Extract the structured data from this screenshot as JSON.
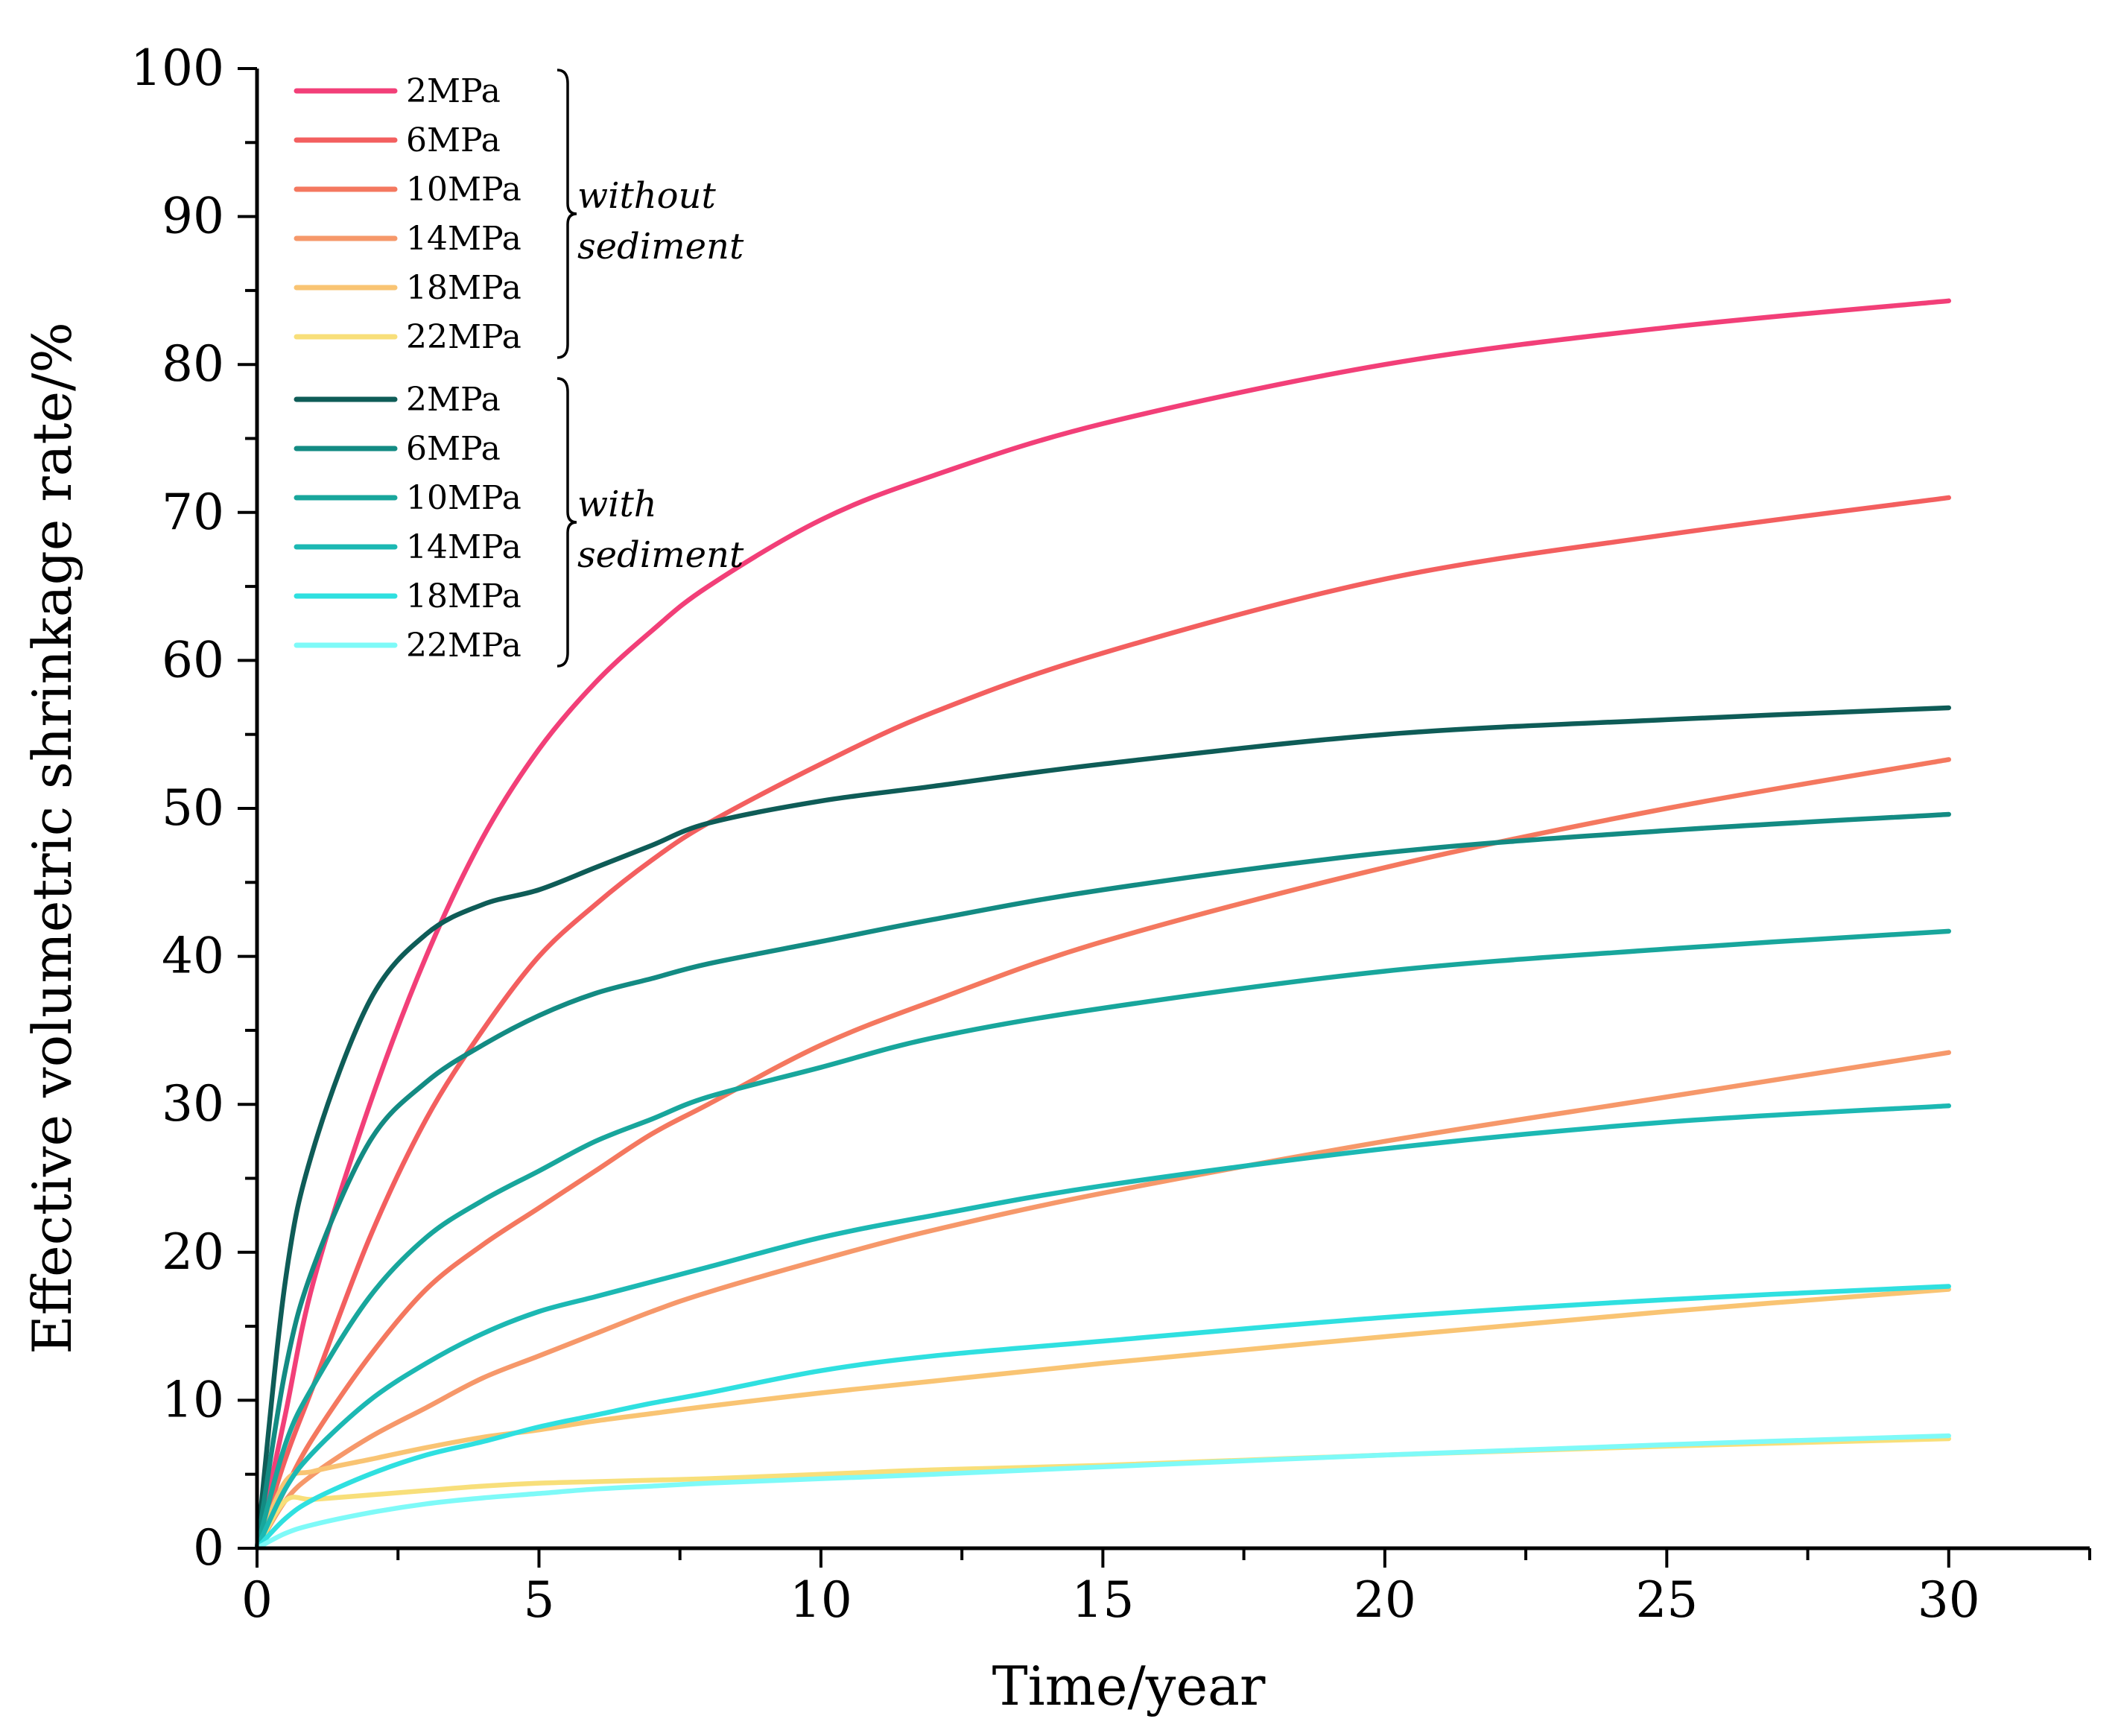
{
  "chart_data": {
    "type": "line",
    "xlabel": "Time/year",
    "ylabel": "Effective volumetric shrinkage rate/%",
    "xlim": [
      0,
      32.5
    ],
    "ylim": [
      0,
      100
    ],
    "x_ticks": [
      "0",
      "5",
      "10",
      "15",
      "20",
      "25",
      "30"
    ],
    "y_ticks": [
      "0",
      "10",
      "20",
      "30",
      "40",
      "50",
      "60",
      "70",
      "80",
      "90",
      "100"
    ],
    "x_tick_values": [
      0,
      5,
      10,
      15,
      20,
      25,
      30
    ],
    "y_tick_values": [
      0,
      10,
      20,
      30,
      40,
      50,
      60,
      70,
      80,
      90,
      100
    ],
    "legend_groups": [
      {
        "label_line1": "without",
        "label_line2": "sediment"
      },
      {
        "label_line1": "with",
        "label_line2": "sediment"
      }
    ],
    "x": [
      0,
      0.5,
      1,
      2,
      3,
      4,
      5,
      6,
      7,
      8,
      10,
      12,
      15,
      20,
      25,
      30
    ],
    "series": [
      {
        "name": "2MPa",
        "group": 0,
        "color": "#f23f78",
        "values": [
          0,
          9,
          18,
          30,
          40,
          48,
          54,
          58.5,
          62,
          65,
          69.5,
          72.5,
          76,
          80,
          82.5,
          84.3
        ]
      },
      {
        "name": "6MPa",
        "group": 0,
        "color": "#f35f5f",
        "values": [
          0,
          6,
          11,
          21,
          29,
          35,
          40,
          43.5,
          46.5,
          49,
          53,
          56.5,
          60.5,
          65.5,
          68.5,
          71
        ]
      },
      {
        "name": "10MPa",
        "group": 0,
        "color": "#f4785f",
        "values": [
          0,
          4,
          7.5,
          13,
          17.5,
          20.5,
          23,
          25.5,
          28,
          30,
          34,
          37,
          41,
          46,
          50,
          53.3
        ]
      },
      {
        "name": "14MPa",
        "group": 0,
        "color": "#f6986a",
        "values": [
          0,
          3.2,
          5,
          7.5,
          9.5,
          11.5,
          13,
          14.5,
          16,
          17.3,
          19.5,
          21.5,
          24,
          27.5,
          30.5,
          33.5
        ]
      },
      {
        "name": "18MPa",
        "group": 0,
        "color": "#f9c473",
        "values": [
          0,
          4.5,
          5.2,
          6,
          6.8,
          7.5,
          8,
          8.6,
          9.1,
          9.6,
          10.5,
          11.3,
          12.5,
          14.3,
          16,
          17.5
        ]
      },
      {
        "name": "22MPa",
        "group": 0,
        "color": "#f8df7a",
        "values": [
          0,
          3.2,
          3.3,
          3.6,
          3.9,
          4.2,
          4.4,
          4.5,
          4.6,
          4.7,
          5,
          5.3,
          5.6,
          6.3,
          6.9,
          7.4
        ]
      },
      {
        "name": "2MPa",
        "group": 1,
        "color": "#0e5c57",
        "values": [
          0,
          18,
          27,
          37,
          41.5,
          43.5,
          44.5,
          46,
          47.5,
          49,
          50.5,
          51.5,
          53,
          55,
          56,
          56.8
        ]
      },
      {
        "name": "6MPa",
        "group": 1,
        "color": "#138b83",
        "values": [
          0,
          12,
          19,
          27.5,
          31.5,
          34,
          36,
          37.5,
          38.5,
          39.5,
          41,
          42.5,
          44.5,
          47,
          48.5,
          49.6
        ]
      },
      {
        "name": "10MPa",
        "group": 1,
        "color": "#18a69c",
        "values": [
          0,
          7,
          11,
          17,
          21,
          23.5,
          25.5,
          27.5,
          29,
          30.5,
          32.5,
          34.5,
          36.5,
          39,
          40.5,
          41.7
        ]
      },
      {
        "name": "14MPa",
        "group": 1,
        "color": "#1cb8b3",
        "values": [
          0,
          4,
          6.5,
          10,
          12.5,
          14.5,
          16,
          17,
          18,
          19,
          21,
          22.5,
          24.5,
          27,
          28.8,
          29.9
        ]
      },
      {
        "name": "18MPa",
        "group": 1,
        "color": "#2fe0e0",
        "values": [
          0,
          2,
          3.3,
          5,
          6.3,
          7.2,
          8.2,
          9,
          9.8,
          10.5,
          12,
          13,
          14,
          15.6,
          16.8,
          17.7
        ]
      },
      {
        "name": "22MPa",
        "group": 1,
        "color": "#7efaf8",
        "values": [
          0,
          1,
          1.6,
          2.4,
          3,
          3.4,
          3.7,
          4,
          4.2,
          4.4,
          4.7,
          5,
          5.5,
          6.3,
          7,
          7.6
        ]
      }
    ]
  }
}
